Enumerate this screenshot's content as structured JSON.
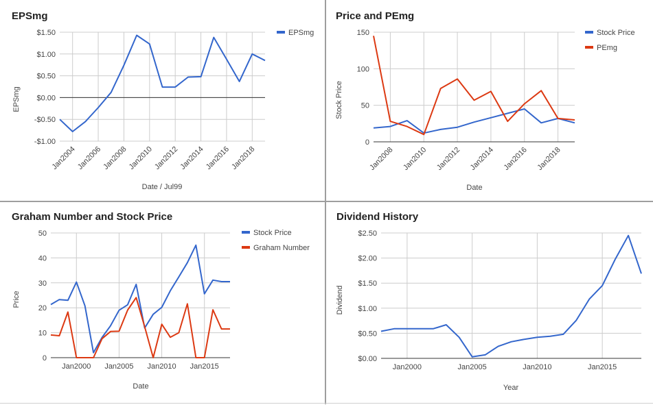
{
  "chart_data": [
    {
      "id": "c1",
      "type": "line",
      "title": "EPSmg",
      "xlabel": "Date / Jul99",
      "ylabel": "EPSmg",
      "x": [
        2003,
        2004,
        2005,
        2006,
        2007,
        2008,
        2009,
        2010,
        2011,
        2012,
        2013,
        2014,
        2015,
        2016,
        2017,
        2018,
        2019
      ],
      "series": [
        {
          "name": "EPSmg",
          "color": "#3366cc",
          "values": [
            -0.5,
            -0.78,
            -0.55,
            -0.23,
            0.12,
            0.74,
            1.43,
            1.23,
            0.24,
            0.24,
            0.47,
            0.48,
            1.38,
            0.88,
            0.37,
            1.0,
            0.85
          ]
        }
      ],
      "xlim": [
        2003,
        2019
      ],
      "ylim": [
        -1.0,
        1.5
      ],
      "yticks": [
        1.5,
        1.0,
        0.5,
        0.0,
        -0.5,
        -1.0
      ],
      "ytick_labels": [
        "$1.50",
        "$1.00",
        "$0.50",
        "$0.00",
        "-$0.50",
        "-$1.00"
      ],
      "xticks": [
        2004,
        2006,
        2008,
        2010,
        2012,
        2014,
        2016,
        2018
      ],
      "xtick_labels": [
        "Jan2004",
        "Jan2006",
        "Jan2008",
        "Jan2010",
        "Jan2012",
        "Jan2014",
        "Jan2016",
        "Jan2018"
      ],
      "zero_line": true,
      "legend_position": "right"
    },
    {
      "id": "c2",
      "type": "line",
      "title": "Price and PEmg",
      "xlabel": "Date",
      "ylabel": "Stock Price",
      "x": [
        2007,
        2008,
        2009,
        2010,
        2011,
        2012,
        2013,
        2014,
        2015,
        2016,
        2017,
        2018,
        2019
      ],
      "series": [
        {
          "name": "Stock Price",
          "color": "#3366cc",
          "values": [
            19,
            21,
            29,
            12,
            17,
            20,
            27,
            33,
            39,
            45,
            26,
            32,
            26
          ]
        },
        {
          "name": "PEmg",
          "color": "#dc3912",
          "values": [
            145,
            28,
            21,
            10,
            73,
            86,
            57,
            69,
            28,
            52,
            70,
            32,
            30
          ]
        }
      ],
      "xlim": [
        2007,
        2019
      ],
      "ylim": [
        0,
        150
      ],
      "yticks": [
        150,
        100,
        50,
        0
      ],
      "ytick_labels": [
        "150",
        "100",
        "50",
        "0"
      ],
      "xticks": [
        2008,
        2010,
        2012,
        2014,
        2016,
        2018
      ],
      "xtick_labels": [
        "Jan2008",
        "Jan2010",
        "Jan2012",
        "Jan2014",
        "Jan2016",
        "Jan2018"
      ],
      "legend_position": "right"
    },
    {
      "id": "c3",
      "type": "line",
      "title": "Graham Number and Stock Price",
      "xlabel": "Date",
      "ylabel": "Price",
      "x": [
        1997,
        1998,
        1999,
        2000,
        2001,
        2002,
        2003,
        2004,
        2005,
        2006,
        2007,
        2008,
        2009,
        2010,
        2011,
        2012,
        2013,
        2014,
        2015,
        2016,
        2017,
        2018
      ],
      "series": [
        {
          "name": "Stock Price",
          "color": "#3366cc",
          "values": [
            21.3,
            23.3,
            23.0,
            30.3,
            20.8,
            2.0,
            8.1,
            12.8,
            19.0,
            21.2,
            29.4,
            11.9,
            17.4,
            20.2,
            26.8,
            32.4,
            38.1,
            45.1,
            25.6,
            31.1,
            30.5,
            30.5
          ]
        },
        {
          "name": "Graham Number",
          "color": "#dc3912",
          "values": [
            9.1,
            8.8,
            18.3,
            0,
            0,
            0,
            7.6,
            10.5,
            10.6,
            19.1,
            24.1,
            12.4,
            0,
            13.4,
            8.2,
            10.0,
            21.6,
            0,
            0,
            19.2,
            11.5,
            11.5
          ]
        }
      ],
      "xlim": [
        1997,
        2018
      ],
      "ylim": [
        0,
        50
      ],
      "yticks": [
        50,
        40,
        30,
        20,
        10,
        0
      ],
      "ytick_labels": [
        "50",
        "40",
        "30",
        "20",
        "10",
        "0"
      ],
      "xticks": [
        2000,
        2005,
        2010,
        2015
      ],
      "xtick_labels": [
        "Jan2000",
        "Jan2005",
        "Jan2010",
        "Jan2015"
      ],
      "legend_position": "right"
    },
    {
      "id": "c4",
      "type": "line",
      "title": "Dividend History",
      "xlabel": "Year",
      "ylabel": "Dividend",
      "x": [
        1998,
        1999,
        2000,
        2001,
        2002,
        2003,
        2004,
        2005,
        2006,
        2007,
        2008,
        2009,
        2010,
        2011,
        2012,
        2013,
        2014,
        2015,
        2016,
        2017,
        2018
      ],
      "series": [
        {
          "name": "Dividend",
          "color": "#3366cc",
          "values": [
            0.54,
            0.59,
            0.59,
            0.59,
            0.59,
            0.67,
            0.42,
            0.03,
            0.07,
            0.24,
            0.33,
            0.38,
            0.42,
            0.44,
            0.48,
            0.76,
            1.18,
            1.45,
            1.98,
            2.45,
            1.69
          ]
        }
      ],
      "xlim": [
        1998,
        2018
      ],
      "ylim": [
        0,
        2.5
      ],
      "yticks": [
        2.5,
        2.0,
        1.5,
        1.0,
        0.5,
        0.0
      ],
      "ytick_labels": [
        "$2.50",
        "$2.00",
        "$1.50",
        "$1.00",
        "$0.50",
        "$0.00"
      ],
      "xticks": [
        2000,
        2005,
        2010,
        2015
      ],
      "xtick_labels": [
        "Jan2000",
        "Jan2005",
        "Jan2010",
        "Jan2015"
      ]
    }
  ]
}
